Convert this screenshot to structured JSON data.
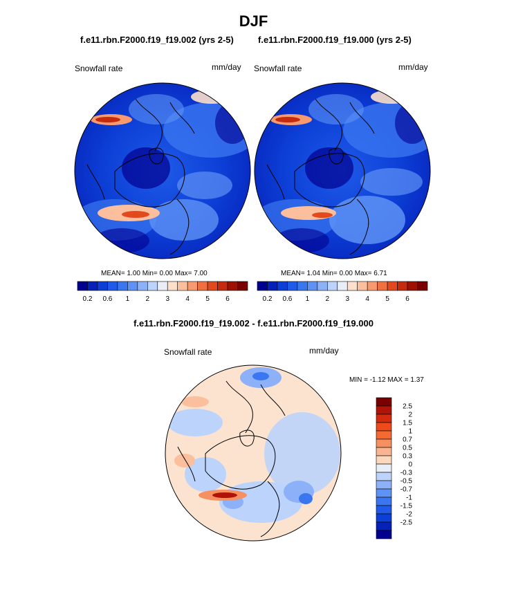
{
  "figure": {
    "season": "DJF",
    "case_a": "f.e11.rbn.F2000.f19_f19.002 (yrs 2-5)",
    "case_b": "f.e11.rbn.F2000.f19_f19.000 (yrs 2-5)",
    "diff_title": "f.e11.rbn.F2000.f19_f19.002 - f.e11.rbn.F2000.f19_f19.000"
  },
  "panels": [
    {
      "label": "Snowfall rate",
      "units": "mm/day",
      "stats": {
        "mean_label": "MEAN=",
        "mean": "1.00",
        "min_label": "Min=",
        "min": "0.00",
        "max_label": "Max=",
        "max": "7.00"
      }
    },
    {
      "label": "Snowfall rate",
      "units": "mm/day",
      "stats": {
        "mean_label": "MEAN=",
        "mean": "1.04",
        "min_label": "Min=",
        "min": "0.00",
        "max_label": "Max=",
        "max": "6.71"
      }
    },
    {
      "label": "Snowfall rate",
      "units": "mm/day",
      "stats_text": "MIN =  -1.12 MAX =   1.37"
    }
  ],
  "chart_data": [
    {
      "type": "heatmap",
      "projection": "north polar stereographic",
      "variable": "Snowfall rate",
      "units": "mm/day",
      "mean": 1.0,
      "min": 0.0,
      "max": 7.0
    },
    {
      "type": "heatmap",
      "projection": "north polar stereographic",
      "variable": "Snowfall rate",
      "units": "mm/day",
      "mean": 1.04,
      "min": 0.0,
      "max": 6.71
    },
    {
      "type": "heatmap",
      "projection": "north polar stereographic",
      "variable": "Snowfall rate",
      "units": "mm/day",
      "min": -1.12,
      "max": 1.37
    }
  ],
  "colorbar_abs": {
    "colors": [
      "#02008f",
      "#0621b8",
      "#0c3fd6",
      "#1f5ae8",
      "#3a76f0",
      "#5e92f5",
      "#8cb1f8",
      "#bcd3fb",
      "#e8eef8",
      "#fde0cc",
      "#fbbf9d",
      "#f79a6f",
      "#f0703f",
      "#e24a1e",
      "#c52b0c",
      "#9e1102",
      "#7a0000"
    ],
    "labels": [
      "0.2",
      "0.6",
      "1",
      "2",
      "3",
      "4",
      "5",
      "6"
    ]
  },
  "colorbar_diff": {
    "colors": [
      "#7a0000",
      "#b01307",
      "#d52b0d",
      "#ee4a1a",
      "#f46a30",
      "#f79060",
      "#f9b58f",
      "#fbd7bd",
      "#e8eef8",
      "#bcd3fb",
      "#8cb1f8",
      "#5e92f5",
      "#3a76f0",
      "#1f5ae8",
      "#0c3fd6",
      "#0621b8",
      "#02008f"
    ],
    "labels": [
      "2.5",
      "2",
      "1.5",
      "1",
      "0.7",
      "0.5",
      "0.3",
      "0",
      "-0.3",
      "-0.5",
      "-0.7",
      "-1",
      "-1.5",
      "-2",
      "-2.5"
    ]
  },
  "colors": {
    "land_outline": "#000000",
    "zero_diff": "#fbe3d0"
  }
}
